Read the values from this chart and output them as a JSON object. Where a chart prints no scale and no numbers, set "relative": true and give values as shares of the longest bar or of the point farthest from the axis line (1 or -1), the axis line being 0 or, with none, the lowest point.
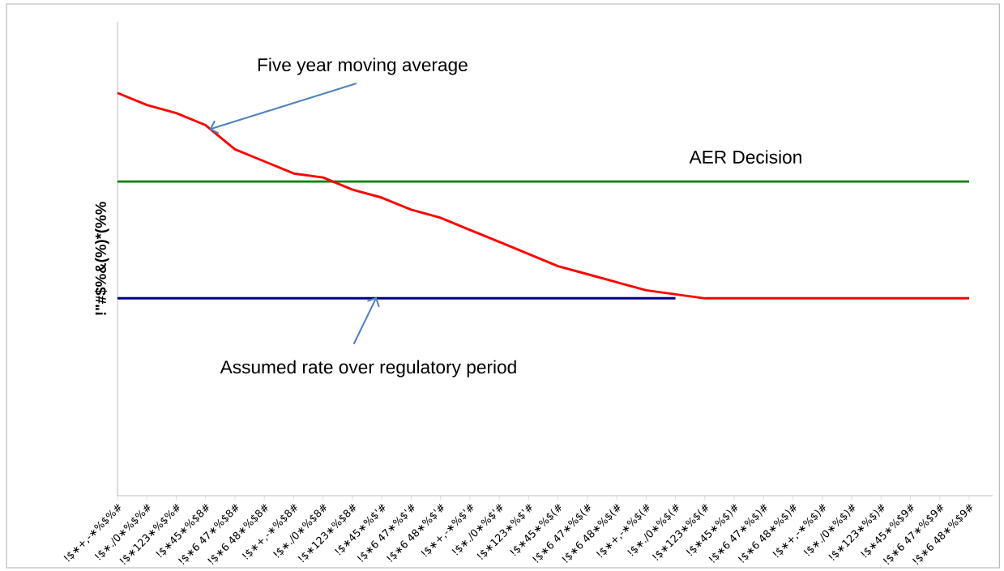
{
  "chart_data": {
    "type": "line",
    "relative": true,
    "ylabel": "!\"#$%&(%)*(%%",
    "categories": [
      "!$∗+,-∗%$%#",
      "!$∗./0∗%$%#",
      "!$∗123∗%$%#",
      "!$∗45∗%$8#",
      "!$∗6 47∗%$8#",
      "!$∗6 48∗%$8#",
      "!$∗+,-∗%$8#",
      "!$∗./0∗%$8#",
      "!$∗123∗%$8#",
      "!$∗45∗%$'#",
      "!$∗6 47∗%$'#",
      "!$∗6 48∗%$'#",
      "!$∗+,-∗%$'#",
      "!$∗./0∗%$'#",
      "!$∗123∗%$'#",
      "!$∗45∗%$(#",
      "!$∗6 47∗%$(#",
      "!$∗6 48∗%$(#",
      "!$∗+,-∗%$(#",
      "!$∗./0∗%$(#",
      "!$∗123∗%$(#",
      "!$∗45∗%$)#",
      "!$∗6 47∗%$)#",
      "!$∗6 48∗%$)#",
      "!$∗+,-∗%$)#",
      "!$∗./0∗%$)#",
      "!$∗123∗%$)#",
      "!$∗45∗%$9#",
      "!$∗6 47∗%$9#",
      "!$∗6 48∗%$9#"
    ],
    "series": [
      {
        "color": "#008000",
        "values": [
          0.78,
          0.78,
          0.78,
          0.78,
          0.78,
          0.78,
          0.78,
          0.78,
          0.78,
          0.78,
          0.78,
          0.78,
          0.78,
          0.78,
          0.78,
          0.78,
          0.78,
          0.78,
          0.78,
          0.78,
          0.78,
          0.78,
          0.78,
          0.78,
          0.78,
          0.78,
          0.78,
          0.78,
          0.78,
          0.78
        ]
      },
      {
        "color": "#000080",
        "values": [
          0.49,
          0.49,
          0.49,
          0.49,
          0.49,
          0.49,
          0.49,
          0.49,
          0.49,
          0.49,
          0.49,
          0.49,
          0.49,
          0.49,
          0.49,
          0.49,
          0.49,
          0.49,
          0.49,
          0.49,
          null,
          null,
          null,
          null,
          null,
          null,
          null,
          null,
          null,
          null
        ]
      },
      {
        "color": "#ff0000",
        "values": [
          1,
          0.97,
          0.95,
          0.92,
          0.86,
          0.83,
          0.8,
          0.79,
          0.76,
          0.74,
          0.71,
          0.69,
          0.66,
          0.63,
          0.6,
          0.57,
          0.55,
          0.53,
          0.51,
          0.5,
          0.49,
          0.49,
          0.49,
          0.49,
          0.49,
          0.49,
          0.49,
          0.49,
          0.49,
          0.49
        ]
      }
    ],
    "annotations": [
      "Five year moving average",
      "AER Decision",
      "Assumed rate over regulatory period"
    ],
    "grid": false,
    "marker": "none",
    "line_style": "solid"
  }
}
